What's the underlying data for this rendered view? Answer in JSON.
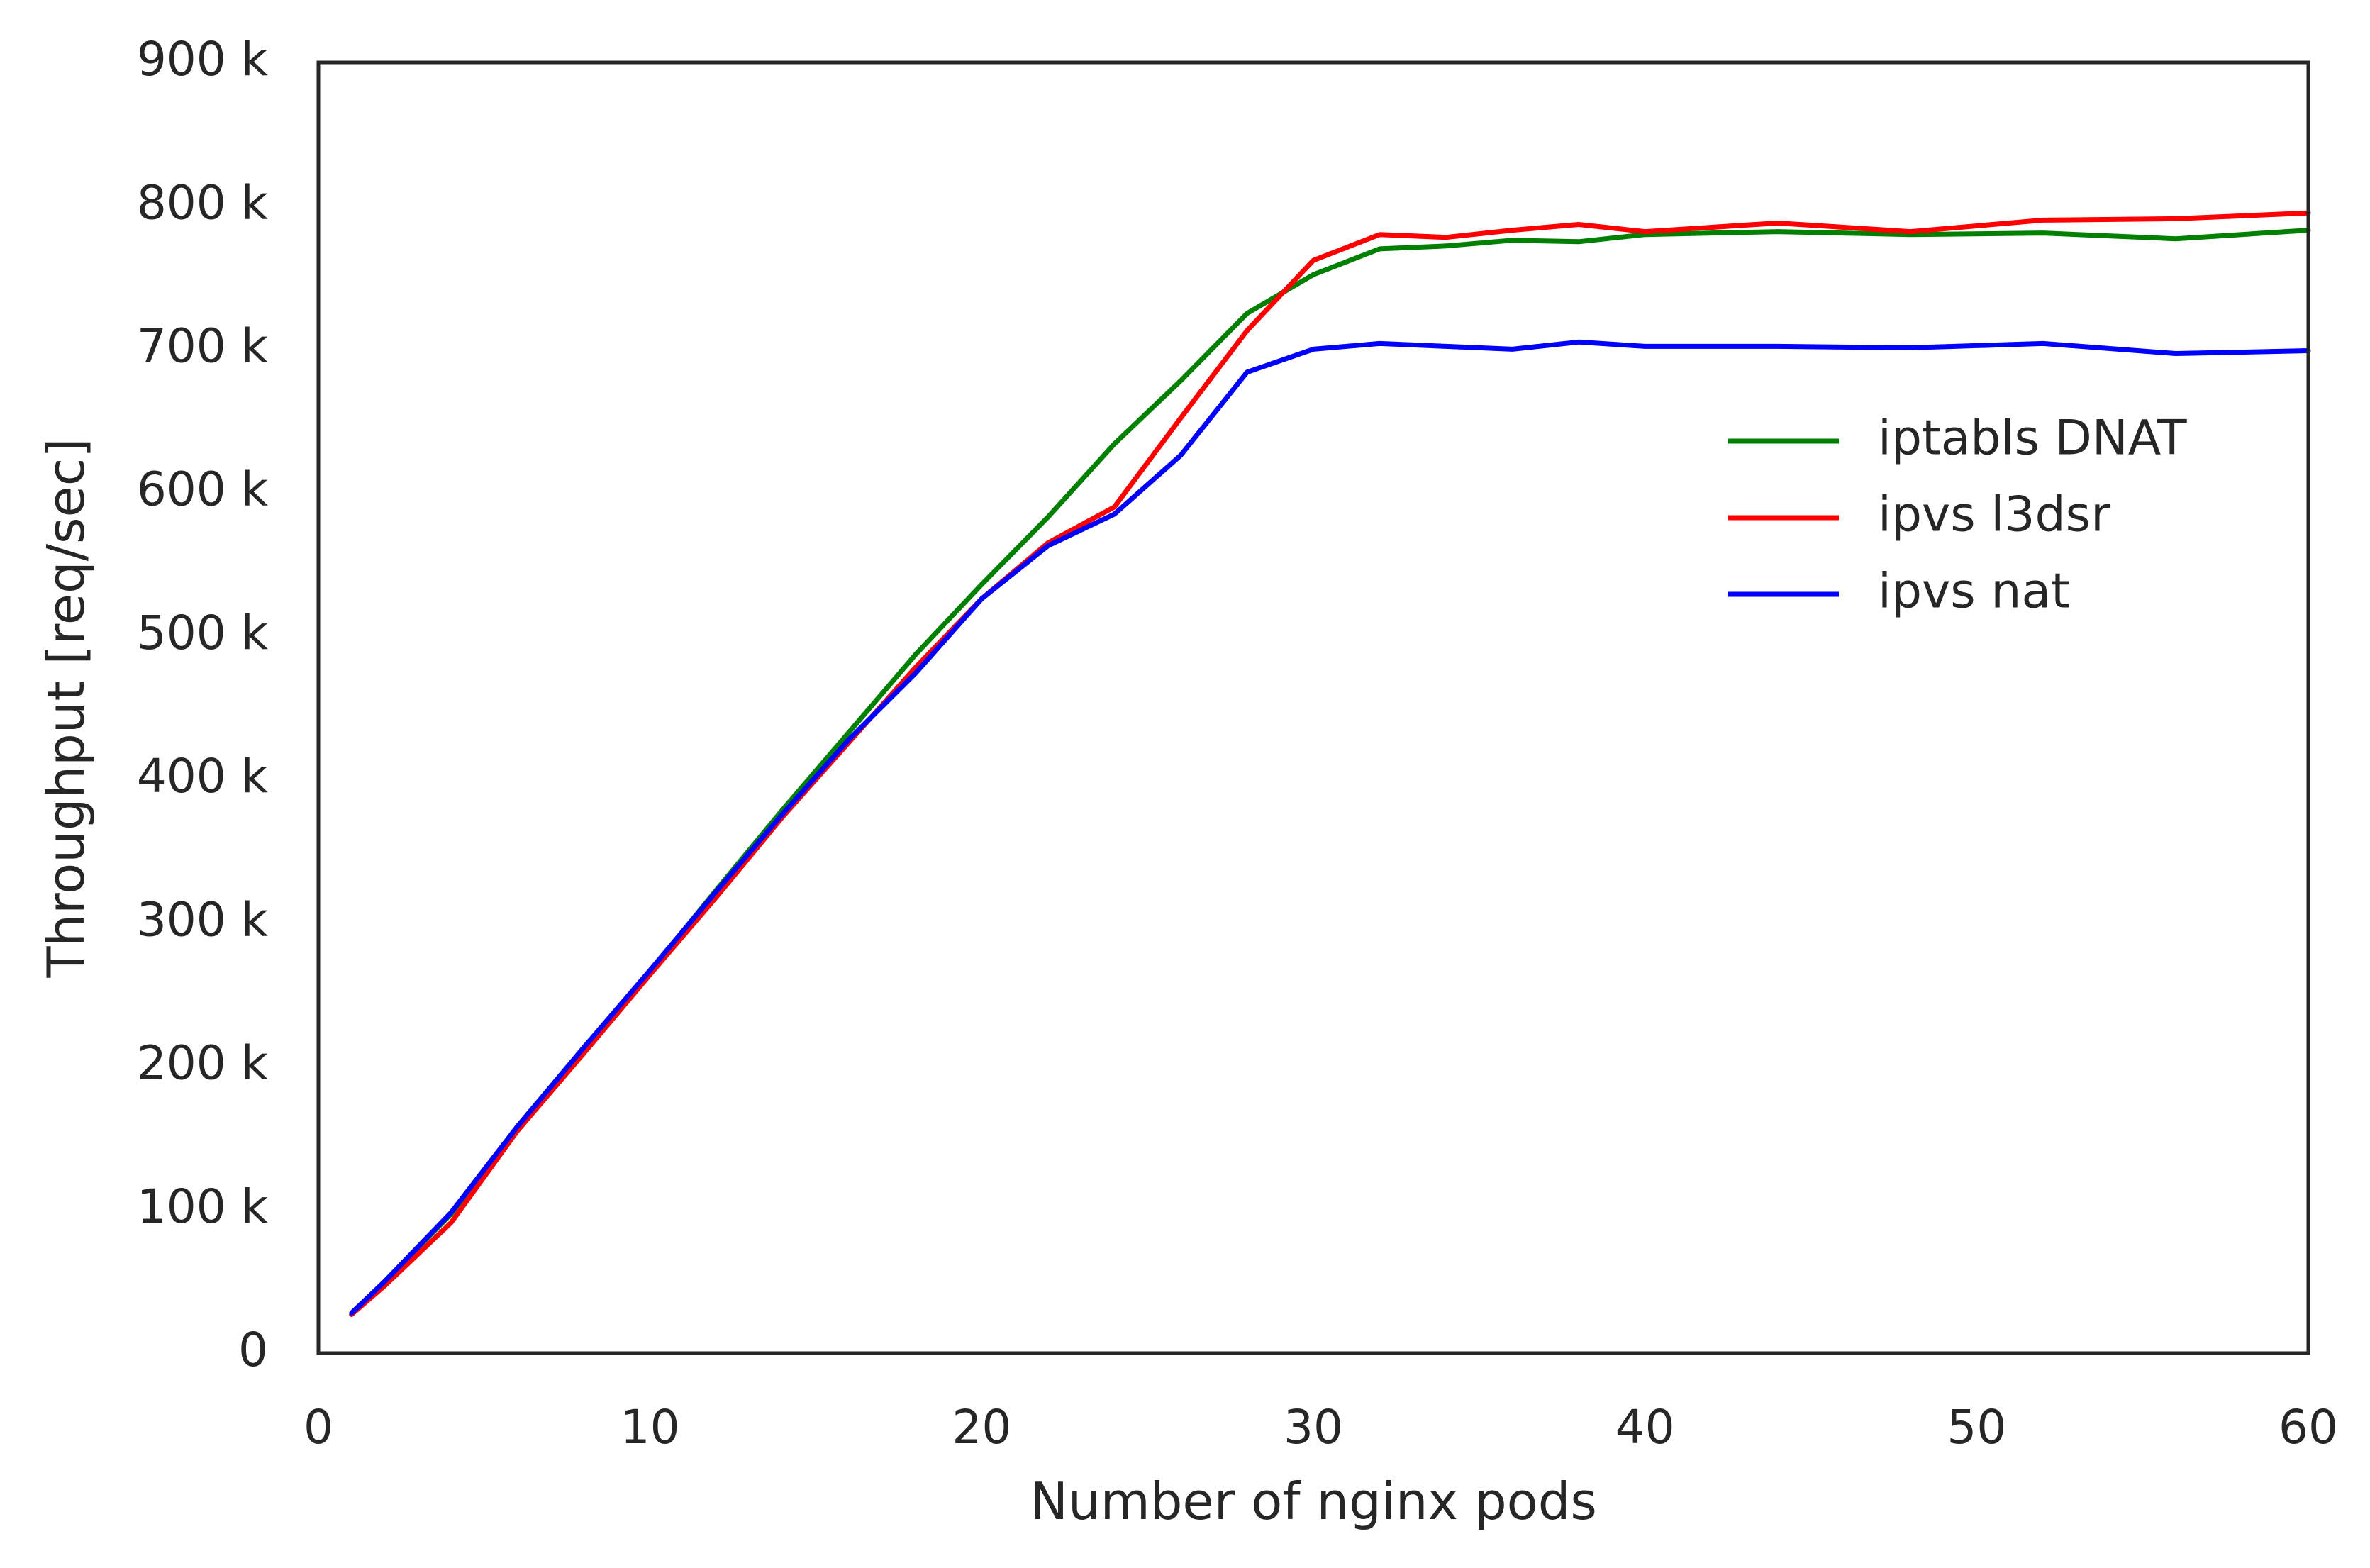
{
  "chart_data": {
    "type": "line",
    "title": "",
    "xlabel": "Number of nginx pods",
    "ylabel": "Throughput [req/sec]",
    "xlim": [
      0,
      60
    ],
    "ylim": [
      0,
      900000
    ],
    "x_ticks": [
      0,
      10,
      20,
      30,
      40,
      50,
      60
    ],
    "x_tick_labels": [
      "0",
      "10",
      "20",
      "30",
      "40",
      "50",
      "60"
    ],
    "y_ticks": [
      0,
      100000,
      200000,
      300000,
      400000,
      500000,
      600000,
      700000,
      800000,
      900000
    ],
    "y_tick_labels": [
      "0",
      "100 k",
      "200 k",
      "300 k",
      "400 k",
      "500 k",
      "600 k",
      "700 k",
      "800 k",
      "900 k"
    ],
    "grid": false,
    "legend_position": "right",
    "series": [
      {
        "name": "iptabls DNAT",
        "color": "#008000",
        "x": [
          1,
          2,
          4,
          6,
          8,
          10,
          12,
          14,
          16,
          18,
          20,
          22,
          24,
          26,
          28,
          30,
          32,
          34,
          36,
          38,
          40,
          44,
          48,
          52,
          56,
          60
        ],
        "y": [
          27000,
          50000,
          97000,
          158000,
          213000,
          266000,
          323000,
          379000,
          433000,
          487000,
          536000,
          583000,
          634000,
          678000,
          725000,
          752000,
          770000,
          772000,
          776000,
          775000,
          780000,
          782000,
          780000,
          781000,
          777000,
          783000
        ]
      },
      {
        "name": "ipvs l3dsr",
        "color": "#ff0000",
        "x": [
          1,
          2,
          4,
          6,
          8,
          10,
          12,
          14,
          16,
          18,
          20,
          22,
          24,
          26,
          28,
          30,
          32,
          34,
          36,
          38,
          40,
          44,
          48,
          52,
          56,
          60
        ],
        "y": [
          27000,
          47000,
          91000,
          155000,
          209000,
          264000,
          318000,
          374000,
          426000,
          478000,
          526000,
          565000,
          590000,
          652000,
          713000,
          762000,
          780000,
          778000,
          783000,
          787000,
          782000,
          788000,
          782000,
          790000,
          791000,
          795000
        ]
      },
      {
        "name": "ipvs nat",
        "color": "#0000ff",
        "x": [
          1,
          2,
          4,
          6,
          8,
          10,
          12,
          14,
          16,
          18,
          20,
          22,
          24,
          26,
          28,
          30,
          32,
          34,
          36,
          38,
          40,
          44,
          48,
          52,
          56,
          60
        ],
        "y": [
          28000,
          50000,
          98000,
          158000,
          213000,
          267000,
          322000,
          376000,
          428000,
          474000,
          526000,
          563000,
          585000,
          626000,
          684000,
          700000,
          704000,
          702000,
          700000,
          705000,
          702000,
          702000,
          701000,
          704000,
          697000,
          699000
        ]
      }
    ]
  }
}
